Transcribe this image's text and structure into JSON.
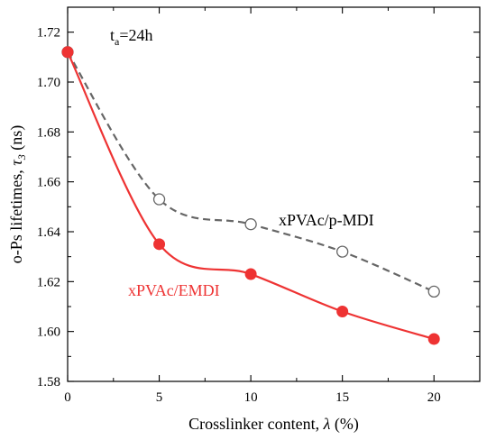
{
  "chart_data": {
    "type": "line",
    "title": "",
    "annotation": {
      "base": "t",
      "subscript": "a",
      "rest": "=24h"
    },
    "xlabel": {
      "text": "Crosslinker content, ",
      "symbol": "λ",
      "unit": " (%)"
    },
    "ylabel": {
      "text": "o-Ps lifetimes, ",
      "symbol": "τ",
      "subscript": "3",
      "unit": " (ns)"
    },
    "xlim": [
      0,
      22.5
    ],
    "ylim": [
      1.58,
      1.73
    ],
    "xticks": [
      0,
      5,
      10,
      15,
      20
    ],
    "xtick_labels": [
      "0",
      "5",
      "10",
      "15",
      "20"
    ],
    "yticks": [
      1.58,
      1.6,
      1.62,
      1.64,
      1.66,
      1.68,
      1.7,
      1.72
    ],
    "ytick_labels": [
      "1.58",
      "1.60",
      "1.62",
      "1.64",
      "1.66",
      "1.68",
      "1.70",
      "1.72"
    ],
    "grid": false,
    "series": [
      {
        "name": "xPVAc/p-MDI",
        "x": [
          0,
          5,
          10,
          15,
          20
        ],
        "y": [
          1.712,
          1.653,
          1.643,
          1.632,
          1.616
        ],
        "color": "#666666",
        "line_style": "dashed",
        "marker": "open-circle"
      },
      {
        "name": "xPVAc/EMDI",
        "x": [
          0,
          5,
          10,
          15,
          20
        ],
        "y": [
          1.712,
          1.635,
          1.623,
          1.608,
          1.597
        ],
        "color": "#ee3333",
        "line_style": "solid",
        "marker": "filled-circle"
      }
    ]
  }
}
